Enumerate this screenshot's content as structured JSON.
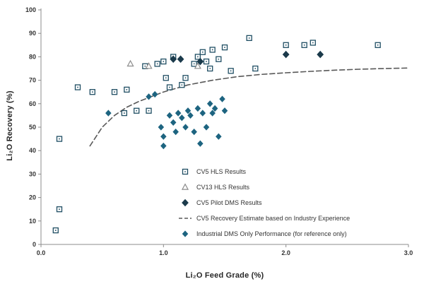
{
  "chart_data": {
    "type": "scatter",
    "title": "",
    "xlabel": "Li₂O Feed Grade (%)",
    "ylabel": "Li₂O Recovery (%)",
    "xlim": [
      0.0,
      3.0
    ],
    "ylim": [
      0,
      100
    ],
    "grid": false,
    "legend_position": "inside lower right",
    "x_tick_values": [
      0,
      1,
      2,
      3
    ],
    "x_tick_labels": [
      "0.0",
      "1.0",
      "2.0",
      "3.0"
    ],
    "y_tick_values": [
      0,
      10,
      20,
      30,
      40,
      50,
      60,
      70,
      80,
      90,
      100
    ],
    "colors": {
      "hls_square": "#1f4e63",
      "cv13_triangle": "#8c8c8c",
      "pilot_diamond": "#1b3a4b",
      "industrial_dot": "#1d6480",
      "estimate_dash": "#595959",
      "axis": "#8c8c8c",
      "tick_text": "#333333"
    },
    "series": [
      {
        "name": "CV5 Recovery Estimate based on Industry Experience",
        "marker": "dashed-line",
        "color": "#595959",
        "points": [
          [
            0.4,
            42
          ],
          [
            0.5,
            50
          ],
          [
            0.6,
            55
          ],
          [
            0.7,
            58.5
          ],
          [
            0.8,
            61
          ],
          [
            0.9,
            63
          ],
          [
            1.0,
            65
          ],
          [
            1.1,
            66.5
          ],
          [
            1.2,
            68
          ],
          [
            1.4,
            70
          ],
          [
            1.6,
            71.5
          ],
          [
            1.8,
            72.5
          ],
          [
            2.0,
            73.2
          ],
          [
            2.2,
            73.8
          ],
          [
            2.4,
            74.3
          ],
          [
            2.6,
            74.7
          ],
          [
            2.8,
            75
          ],
          [
            3.0,
            75.2
          ]
        ]
      },
      {
        "name": "Industrial DMS Only Performance (for reference only)",
        "marker": "filled-dot",
        "color": "#1d6480",
        "points": [
          [
            0.55,
            56
          ],
          [
            0.88,
            63
          ],
          [
            0.93,
            64
          ],
          [
            0.98,
            50
          ],
          [
            1.0,
            46
          ],
          [
            1.0,
            42
          ],
          [
            1.05,
            55
          ],
          [
            1.08,
            52
          ],
          [
            1.1,
            48
          ],
          [
            1.12,
            56
          ],
          [
            1.15,
            54
          ],
          [
            1.18,
            50
          ],
          [
            1.2,
            57
          ],
          [
            1.22,
            55
          ],
          [
            1.25,
            48
          ],
          [
            1.28,
            58
          ],
          [
            1.3,
            43
          ],
          [
            1.32,
            56
          ],
          [
            1.35,
            50
          ],
          [
            1.38,
            60
          ],
          [
            1.4,
            56
          ],
          [
            1.42,
            58
          ],
          [
            1.45,
            46
          ],
          [
            1.48,
            62
          ],
          [
            1.5,
            57
          ]
        ]
      },
      {
        "name": "CV5 HLS Results",
        "marker": "open-square",
        "color": "#1f4e63",
        "points": [
          [
            0.12,
            6
          ],
          [
            0.15,
            15
          ],
          [
            0.15,
            45
          ],
          [
            0.3,
            67
          ],
          [
            0.42,
            65
          ],
          [
            0.6,
            65
          ],
          [
            0.68,
            56
          ],
          [
            0.7,
            66
          ],
          [
            0.78,
            57
          ],
          [
            0.85,
            76
          ],
          [
            0.88,
            57
          ],
          [
            0.95,
            77
          ],
          [
            1.0,
            78
          ],
          [
            1.02,
            71
          ],
          [
            1.05,
            67
          ],
          [
            1.08,
            80
          ],
          [
            1.15,
            68
          ],
          [
            1.18,
            71
          ],
          [
            1.25,
            77
          ],
          [
            1.28,
            80
          ],
          [
            1.32,
            82
          ],
          [
            1.35,
            78
          ],
          [
            1.38,
            75
          ],
          [
            1.4,
            83
          ],
          [
            1.45,
            79
          ],
          [
            1.5,
            84
          ],
          [
            1.55,
            74
          ],
          [
            1.7,
            88
          ],
          [
            1.75,
            75
          ],
          [
            2.0,
            85
          ],
          [
            2.15,
            85
          ],
          [
            2.22,
            86
          ],
          [
            2.75,
            85
          ]
        ]
      },
      {
        "name": "CV13 HLS Results",
        "marker": "open-triangle",
        "color": "#8c8c8c",
        "points": [
          [
            0.73,
            77
          ],
          [
            0.88,
            76
          ],
          [
            1.28,
            76
          ]
        ]
      },
      {
        "name": "CV5 Pilot DMS Results",
        "marker": "filled-diamond",
        "color": "#1b3a4b",
        "points": [
          [
            1.08,
            79
          ],
          [
            1.14,
            79
          ],
          [
            1.3,
            78
          ],
          [
            2.0,
            81
          ],
          [
            2.28,
            81
          ]
        ]
      }
    ],
    "legend_order": [
      "CV5 HLS Results",
      "CV13 HLS Results",
      "CV5 Pilot DMS Results",
      "CV5 Recovery Estimate based on Industry Experience",
      "Industrial DMS Only Performance (for reference only)"
    ]
  }
}
